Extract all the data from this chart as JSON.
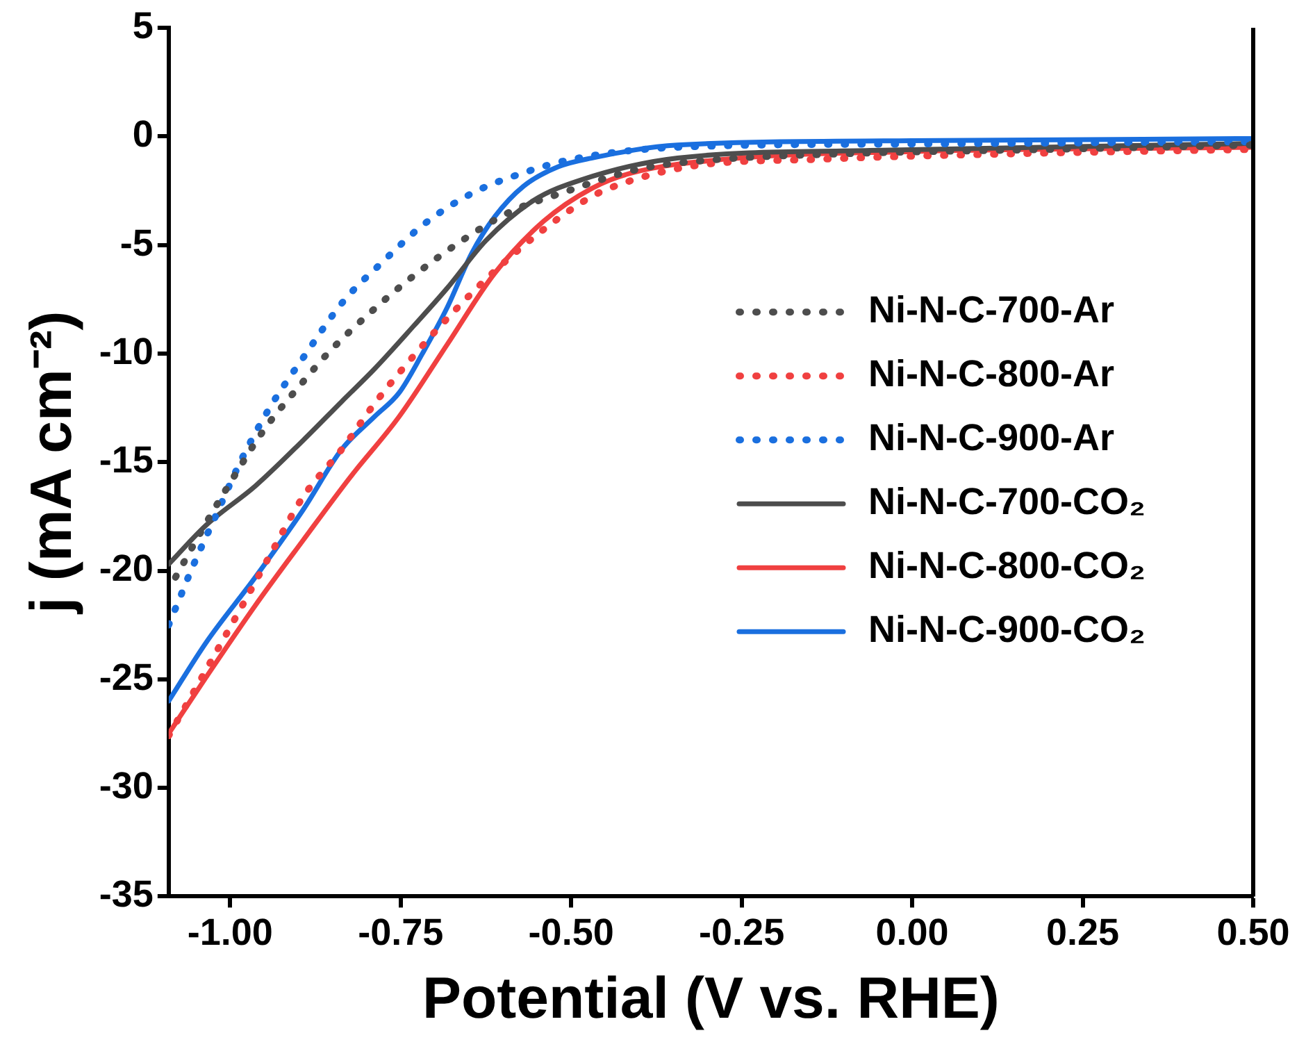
{
  "chart_data": {
    "type": "line",
    "xlabel": "Potential (V vs. RHE)",
    "ylabel": "j (mA cm⁻²)",
    "xlim": [
      -1.09,
      0.5
    ],
    "xticks": [
      {
        "value": -1,
        "label": "-1.00"
      },
      {
        "value": -0.75,
        "label": "-0.75"
      },
      {
        "value": -0.5,
        "label": "-0.50"
      },
      {
        "value": -0.25,
        "label": "-0.25"
      },
      {
        "value": 0,
        "label": "0.00"
      },
      {
        "value": 0.25,
        "label": "0.25"
      },
      {
        "value": 0.5,
        "label": "0.50"
      }
    ],
    "ylim": [
      -35,
      5
    ],
    "yticks": [
      -35,
      -30,
      -25,
      -20,
      -15,
      -10,
      -5,
      0,
      5
    ],
    "grid": false,
    "legend": "right",
    "marker": "none",
    "series": [
      {
        "name": "Ni-N-C-700-Ar",
        "color": "#4d4d4d",
        "line_style": "dotted",
        "x": [
          -1.08,
          -1.037,
          -0.995,
          -0.95,
          -0.893,
          -0.857,
          -0.794,
          -0.73,
          -0.66,
          -0.591,
          -0.513,
          -0.4,
          -0.3,
          -0.1,
          0.2,
          0.5
        ],
        "values": [
          -20.3,
          -17.9,
          -15.7,
          -13.5,
          -11.3,
          -10,
          -8.1,
          -6.4,
          -4.8,
          -3.5,
          -2.6,
          -1.5,
          -1.1,
          -0.8,
          -0.6,
          -0.4
        ]
      },
      {
        "name": "Ni-N-C-800-Ar",
        "color": "#f04040",
        "line_style": "dotted",
        "x": [
          -1.09,
          -1.07,
          -1.025,
          -0.982,
          -0.94,
          -0.893,
          -0.836,
          -0.788,
          -0.728,
          -0.667,
          -0.612,
          -0.549,
          -0.477,
          -0.445,
          -0.329,
          -0.132,
          0.15,
          0.5
        ],
        "values": [
          -27.6,
          -26.5,
          -24,
          -21.6,
          -19.2,
          -16.6,
          -14.4,
          -12.3,
          -10,
          -7.9,
          -6.2,
          -4.5,
          -2.9,
          -2.4,
          -1.4,
          -1.05,
          -0.8,
          -0.6
        ]
      },
      {
        "name": "Ni-N-C-900-Ar",
        "color": "#1a6fdf",
        "line_style": "dotted",
        "x": [
          -1.09,
          -1.073,
          -1.056,
          -1.02,
          -0.982,
          -0.942,
          -0.893,
          -0.834,
          -0.777,
          -0.714,
          -0.644,
          -0.572,
          -0.498,
          -0.344,
          0,
          0.5
        ],
        "values": [
          -22.5,
          -21.2,
          -19.9,
          -17.4,
          -14.8,
          -12.5,
          -10.2,
          -7.6,
          -5.8,
          -4,
          -2.6,
          -1.7,
          -1.05,
          -0.5,
          -0.35,
          -0.25
        ]
      },
      {
        "name": "Ni-N-C-700-CO₂",
        "color": "#4d4d4d",
        "line_style": "solid",
        "x": [
          -1.09,
          -1.035,
          -0.963,
          -0.893,
          -0.836,
          -0.788,
          -0.73,
          -0.682,
          -0.625,
          -0.555,
          -0.485,
          -0.344,
          -0.062,
          0.5
        ],
        "values": [
          -19.7,
          -17.9,
          -16.1,
          -14,
          -12.2,
          -10.7,
          -8.7,
          -7,
          -4.8,
          -2.95,
          -2,
          -1,
          -0.65,
          -0.33
        ]
      },
      {
        "name": "Ni-N-C-800-CO₂",
        "color": "#f04040",
        "line_style": "solid",
        "x": [
          -1.09,
          -1.035,
          -0.963,
          -0.893,
          -0.824,
          -0.752,
          -0.682,
          -0.612,
          -0.54,
          -0.47,
          -0.413,
          -0.274,
          0,
          0.5
        ],
        "values": [
          -27.5,
          -24.9,
          -21.6,
          -18.6,
          -15.7,
          -12.9,
          -9.6,
          -6.3,
          -3.9,
          -2.4,
          -1.7,
          -1.05,
          -0.7,
          -0.5
        ]
      },
      {
        "name": "Ni-N-C-900-CO₂",
        "color": "#1a6fdf",
        "line_style": "solid",
        "x": [
          -1.09,
          -1.035,
          -0.963,
          -0.893,
          -0.836,
          -0.788,
          -0.752,
          -0.718,
          -0.682,
          -0.646,
          -0.612,
          -0.57,
          -0.519,
          -0.47,
          -0.344,
          0,
          0.5
        ],
        "values": [
          -26,
          -23.3,
          -20.3,
          -17.2,
          -14.4,
          -12.9,
          -11.8,
          -10,
          -7.9,
          -5.4,
          -3.7,
          -2.3,
          -1.4,
          -1,
          -0.4,
          -0.2,
          -0.1
        ]
      }
    ]
  }
}
